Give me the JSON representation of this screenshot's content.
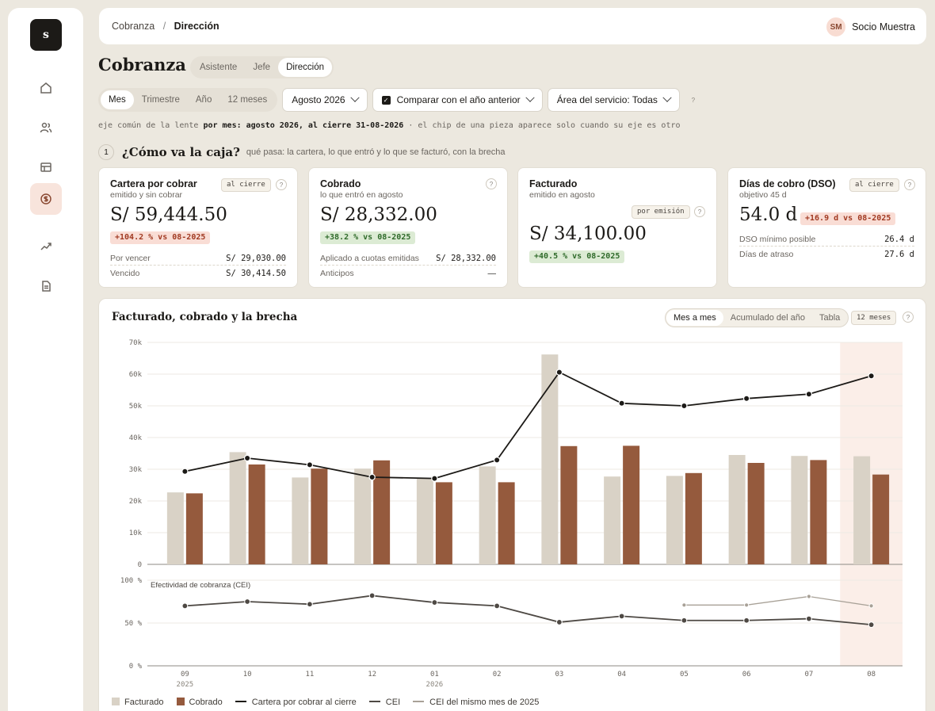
{
  "sidebar": {
    "logo": "s",
    "items": [
      {
        "icon": "home-icon"
      },
      {
        "icon": "users-icon"
      },
      {
        "icon": "table-icon"
      },
      {
        "icon": "coin-icon",
        "active": true
      },
      {
        "icon": "trend-icon"
      },
      {
        "icon": "document-icon"
      }
    ]
  },
  "topbar": {
    "crumb_parent": "Cobranza",
    "crumb_sep": "/",
    "crumb_current": "Dirección",
    "user_initials": "SM",
    "user_name": "Socio Muestra"
  },
  "page": {
    "title": "Cobranza",
    "roles": [
      "Asistente",
      "Jefe",
      "Dirección"
    ],
    "active_role": "Dirección"
  },
  "filters": {
    "periods": [
      "Mes",
      "Trimestre",
      "Año",
      "12 meses"
    ],
    "active_period": "Mes",
    "month": "Agosto 2026",
    "compare_label": "Comparar con el año anterior",
    "area_label": "Área del servicio: Todas",
    "help": "?"
  },
  "lens": {
    "prefix": "eje común de la lente ",
    "bold": "por mes: agosto 2026, al cierre 31-08-2026",
    "suffix": " · el chip de una pieza aparece solo cuando su eje es otro"
  },
  "section": {
    "number": "1",
    "title": "¿Cómo va la caja?",
    "subtitle": "qué pasa: la cartera, lo que entró y lo que se facturó, con la brecha"
  },
  "cards": {
    "cartera": {
      "title": "Cartera por cobrar",
      "sub": "emitido y sin cobrar",
      "tag": "al cierre",
      "value": "S/ 59,444.50",
      "delta": "+104.2 % vs 08-2025",
      "row1_label": "Por vencer",
      "row1_value": "S/ 29,030.00",
      "row2_label": "Vencido",
      "row2_value": "S/ 30,414.50"
    },
    "cobrado": {
      "title": "Cobrado",
      "sub": "lo que entró en agosto",
      "value": "S/ 28,332.00",
      "delta": "+38.2 % vs 08-2025",
      "row1_label": "Aplicado a cuotas emitidas",
      "row1_value": "S/ 28,332.00",
      "row2_label": "Anticipos",
      "row2_value": "—"
    },
    "facturado": {
      "title": "Facturado",
      "sub": "emitido en agosto",
      "tag": "por emisión",
      "value": "S/ 34,100.00",
      "delta": "+40.5 % vs 08-2025"
    },
    "dso": {
      "title": "Días de cobro (DSO)",
      "sub": "objetivo 45 d",
      "tag": "al cierre",
      "value": "54.0 d",
      "delta": "+16.9 d vs 08-2025",
      "row1_label": "DSO mínimo posible",
      "row1_value": "26.4 d",
      "row2_label": "Días de atraso",
      "row2_value": "27.6 d"
    }
  },
  "chart_panel": {
    "title": "Facturado, cobrado y la brecha",
    "views": [
      "Mes a mes",
      "Acumulado del año",
      "Tabla"
    ],
    "active_view": "Mes a mes",
    "range_tag": "12 meses"
  },
  "chart_data": {
    "type": "bar",
    "categories": [
      "09",
      "10",
      "11",
      "12",
      "01",
      "02",
      "03",
      "04",
      "05",
      "06",
      "07",
      "08"
    ],
    "year_labels": {
      "0": "2025",
      "4": "2026"
    },
    "highlight_category": "08",
    "yticks": [
      "0",
      "10k",
      "20k",
      "30k",
      "40k",
      "50k",
      "60k",
      "70k"
    ],
    "ylim": [
      0,
      70000
    ],
    "series": [
      {
        "name": "Facturado",
        "kind": "bar",
        "color": "#d9d2c6",
        "values": [
          22700,
          35400,
          27400,
          30200,
          27000,
          30900,
          66200,
          27700,
          27900,
          34500,
          34200,
          34100
        ]
      },
      {
        "name": "Cobrado",
        "kind": "bar",
        "color": "#955a3d",
        "values": [
          22400,
          31500,
          30200,
          32800,
          25900,
          25900,
          37300,
          37400,
          28800,
          32000,
          32900,
          28332
        ]
      },
      {
        "name": "Cartera por cobrar al cierre",
        "kind": "line",
        "color": "#1c1a17",
        "values": [
          29300,
          33500,
          31400,
          27500,
          27100,
          32900,
          60600,
          50800,
          50000,
          52300,
          53700,
          59444.5
        ]
      }
    ],
    "secondary": {
      "label": "Efectividad de cobranza (CEI)",
      "yticks": [
        "0 %",
        "50 %",
        "100 %"
      ],
      "ylim": [
        0,
        100
      ],
      "series": [
        {
          "name": "CEI",
          "color": "#4e4944",
          "values": [
            70,
            75,
            72,
            82,
            74,
            70,
            51,
            58,
            53,
            53,
            55,
            48
          ]
        },
        {
          "name": "CEI del mismo mes de 2025",
          "color": "#a8a197",
          "values": [
            null,
            null,
            null,
            null,
            null,
            null,
            null,
            null,
            71,
            71,
            81,
            70
          ]
        }
      ]
    },
    "legend": [
      "Facturado",
      "Cobrado",
      "Cartera por cobrar al cierre",
      "CEI",
      "CEI del mismo mes de 2025"
    ]
  }
}
